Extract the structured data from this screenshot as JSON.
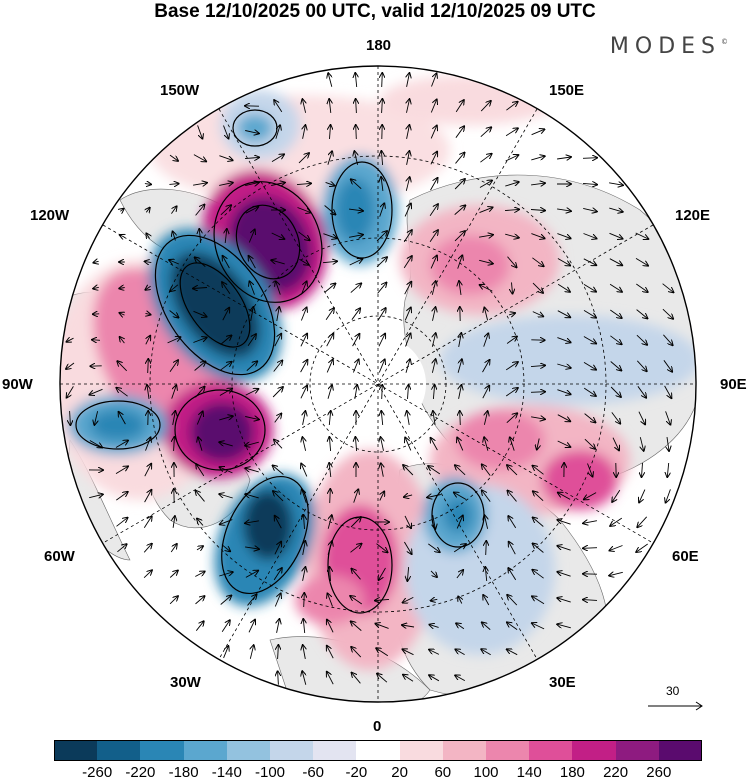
{
  "header": {
    "title": "Base 12/10/2025 00 UTC, valid 12/10/2025 09 UTC",
    "brand": "MODES"
  },
  "longitude_labels": {
    "lon_180": "180",
    "lon_150e": "150E",
    "lon_120e": "120E",
    "lon_90e": "90E",
    "lon_60e": "60E",
    "lon_30e": "30E",
    "lon_0": "0",
    "lon_30w": "30W",
    "lon_60w": "60W",
    "lon_90w": "90W",
    "lon_120w": "120W",
    "lon_150w": "150W"
  },
  "reference_vector": {
    "label": "30"
  },
  "colorbar": {
    "colors": [
      "#0b3a5a",
      "#125f8a",
      "#2a86b5",
      "#5ba7cf",
      "#93c2df",
      "#c4d6ea",
      "#e3e4f1",
      "#ffffff",
      "#f9dbdf",
      "#f3b5c4",
      "#ec86ad",
      "#df4f99",
      "#c21f86",
      "#8e1b80",
      "#5a0b6e"
    ],
    "ticks": [
      "-260",
      "-220",
      "-180",
      "-140",
      "-100",
      "-60",
      "-20",
      "20",
      "60",
      "100",
      "140",
      "180",
      "220",
      "260"
    ]
  }
}
